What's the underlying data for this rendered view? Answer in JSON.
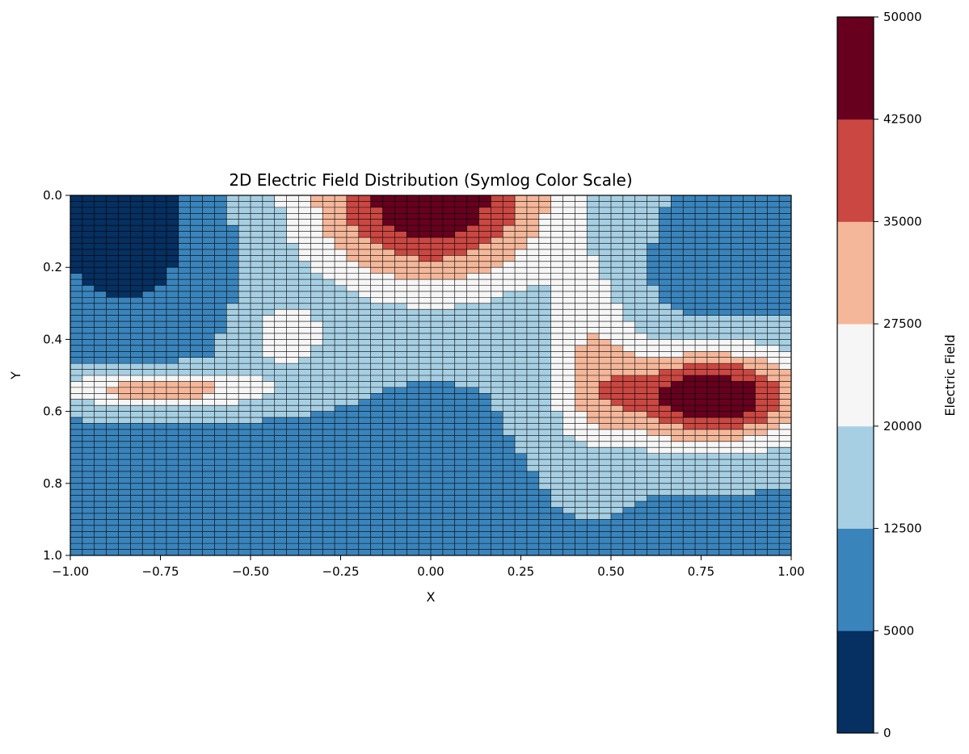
{
  "chart_data": {
    "type": "heatmap",
    "title": "2D Electric Field Distribution (Symlog Color Scale)",
    "xlabel": "X",
    "ylabel": "Y",
    "xlim": [
      -1.0,
      1.0
    ],
    "ylim": [
      1.0,
      0.0
    ],
    "y_inverted": true,
    "x_ticks": [
      "−1.00",
      "−0.75",
      "−0.50",
      "−0.25",
      "0.00",
      "0.25",
      "0.50",
      "0.75",
      "1.00"
    ],
    "x_tick_values": [
      -1.0,
      -0.75,
      -0.5,
      -0.25,
      0.0,
      0.25,
      0.5,
      0.75,
      1.0
    ],
    "y_ticks": [
      "0.0",
      "0.2",
      "0.4",
      "0.6",
      "0.8",
      "1.0"
    ],
    "y_tick_values": [
      0.0,
      0.2,
      0.4,
      0.6,
      0.8,
      1.0
    ],
    "grid": "cell gridlines on (black)",
    "grid_resolution": {
      "nx": 60,
      "ny": 60
    },
    "colorbar": {
      "label": "Electric Field",
      "boundaries": [
        0,
        5000,
        12500,
        20000,
        27500,
        35000,
        42500,
        50000
      ],
      "tick_labels": [
        "0",
        "5000",
        "12500",
        "20000",
        "27500",
        "35000",
        "42500",
        "50000"
      ],
      "colors": [
        "#053061",
        "#3a84bc",
        "#a6cfe3",
        "#f6f6f6",
        "#f5b79a",
        "#ca4742",
        "#67001f"
      ],
      "placement": "right"
    },
    "field_features": [
      {
        "name": "high lobe top-center",
        "center": [
          0.0,
          0.0
        ],
        "level": 50000
      },
      {
        "name": "high lobe right",
        "center": [
          0.75,
          0.55
        ],
        "level": 50000
      },
      {
        "name": "low region top-left",
        "center": [
          -0.85,
          0.1
        ],
        "level": 0
      },
      {
        "name": "warm band left",
        "center": [
          -0.75,
          0.55
        ],
        "level": 35000
      }
    ]
  }
}
